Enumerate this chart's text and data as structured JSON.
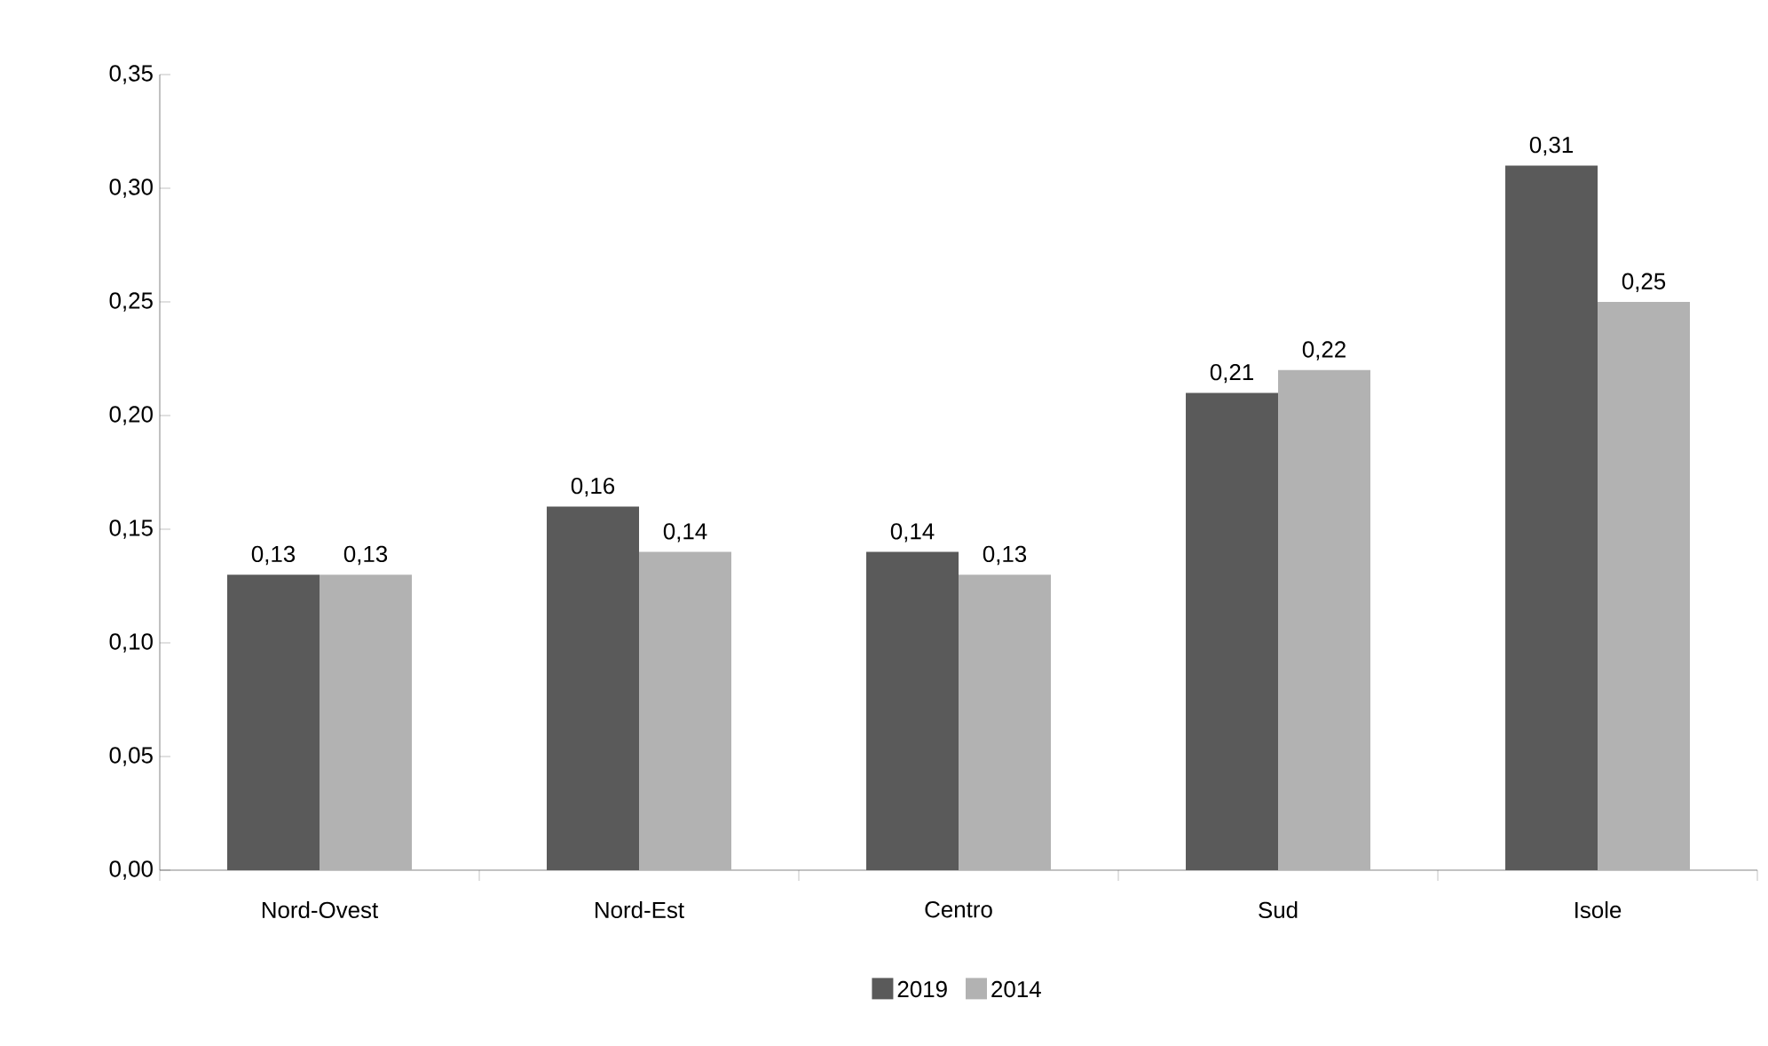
{
  "chart_data": {
    "type": "bar",
    "categories": [
      "Nord-Ovest",
      "Nord-Est",
      "Centro",
      "Sud",
      "Isole"
    ],
    "series": [
      {
        "name": "2019",
        "color": "#5a5a5a",
        "values": [
          0.13,
          0.16,
          0.14,
          0.21,
          0.31
        ],
        "value_labels": [
          "0,13",
          "0,16",
          "0,14",
          "0,21",
          "0,31"
        ]
      },
      {
        "name": "2014",
        "color": "#b2b2b2",
        "values": [
          0.13,
          0.14,
          0.13,
          0.22,
          0.25
        ],
        "value_labels": [
          "0,13",
          "0,14",
          "0,13",
          "0,22",
          "0,25"
        ]
      }
    ],
    "ylim": [
      0,
      0.35
    ],
    "yticks": [
      {
        "value": 0,
        "label": "0,00"
      },
      {
        "value": 0.05,
        "label": "0,05"
      },
      {
        "value": 0.1,
        "label": "0,10"
      },
      {
        "value": 0.15,
        "label": "0,15"
      },
      {
        "value": 0.2,
        "label": "0,20"
      },
      {
        "value": 0.25,
        "label": "0,25"
      },
      {
        "value": 0.3,
        "label": "0,30"
      },
      {
        "value": 0.35,
        "label": "0,35"
      }
    ],
    "grid": false,
    "legend": "bottom"
  }
}
